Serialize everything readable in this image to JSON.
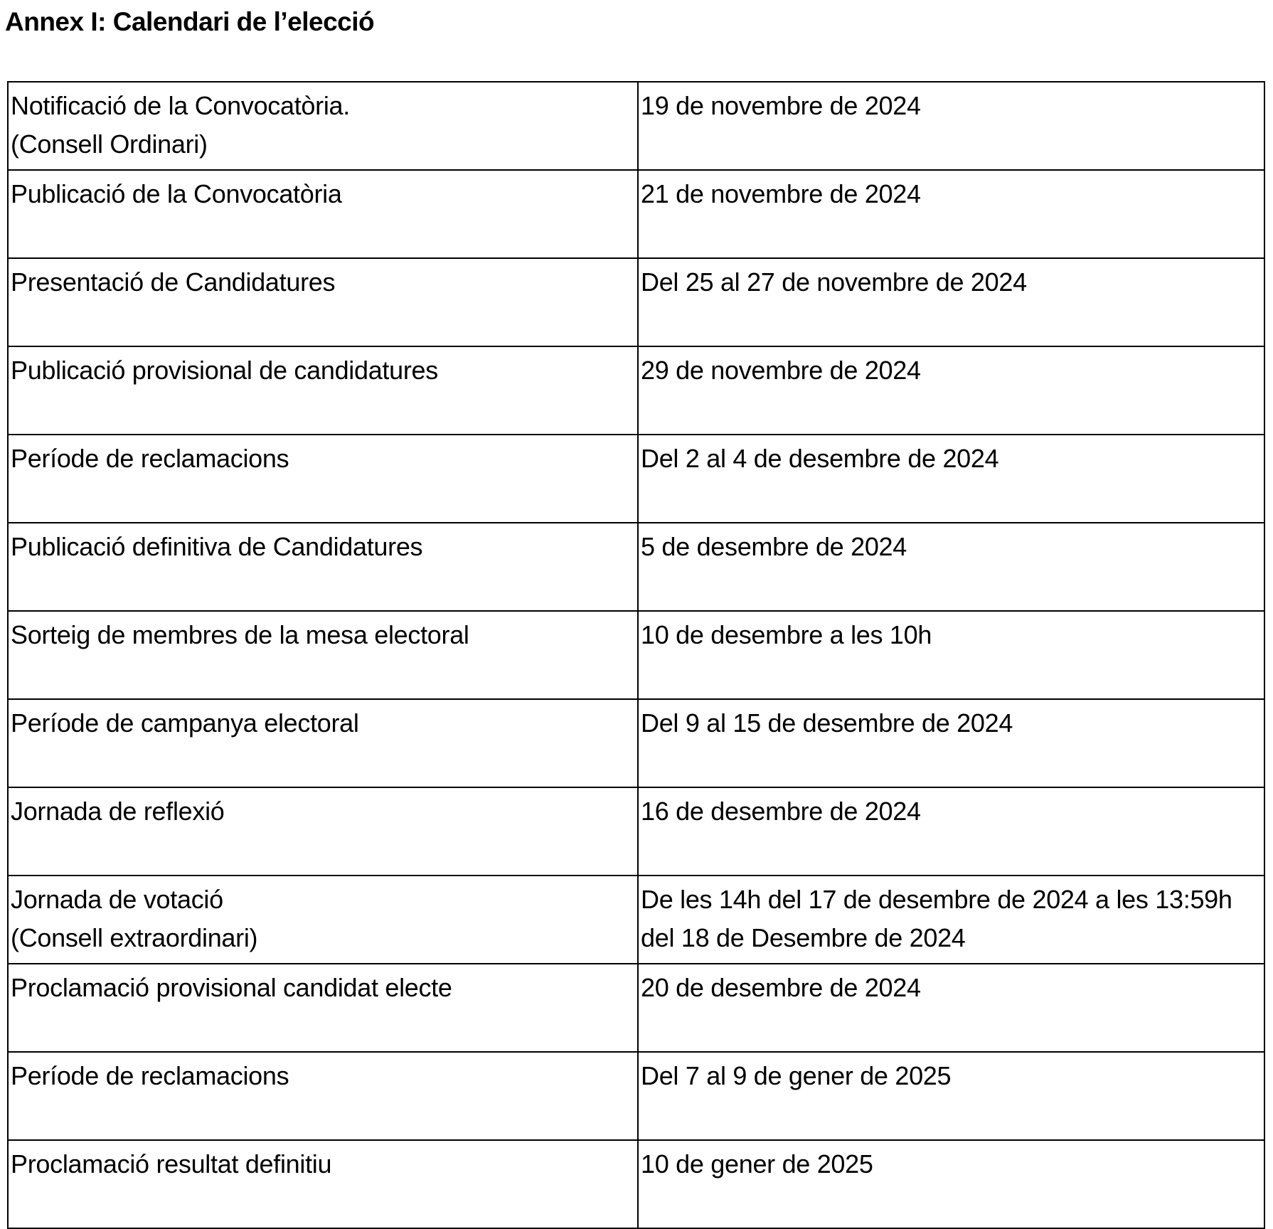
{
  "title": "Annex I: Calendari de l’elecció",
  "rows": [
    {
      "event": "Notificació de la Convocatòria.\n(Consell Ordinari)",
      "date": "19 de novembre de 2024"
    },
    {
      "event": "Publicació de la Convocatòria",
      "date": "21 de novembre de 2024"
    },
    {
      "event": "Presentació de Candidatures",
      "date": "Del 25 al 27 de novembre de 2024"
    },
    {
      "event": "Publicació provisional de candidatures",
      "date": "29 de novembre de 2024"
    },
    {
      "event": "Període de reclamacions",
      "date": "Del 2 al 4 de desembre de 2024"
    },
    {
      "event": "Publicació definitiva de Candidatures",
      "date": "5 de desembre de 2024"
    },
    {
      "event": "Sorteig de membres de la mesa electoral",
      "date": "10 de desembre a les 10h"
    },
    {
      "event": "Període de campanya electoral",
      "date": "Del 9 al 15 de desembre de 2024"
    },
    {
      "event": "Jornada de reflexió",
      "date": "16 de desembre de 2024"
    },
    {
      "event": "Jornada de votació\n(Consell extraordinari)",
      "date": "De les 14h del 17 de desembre de 2024 a les 13:59h del 18 de Desembre de 2024"
    },
    {
      "event": "Proclamació provisional candidat electe",
      "date": "20 de desembre de 2024"
    },
    {
      "event": "Període de reclamacions",
      "date": "Del 7 al 9 de gener de 2025"
    },
    {
      "event": "Proclamació resultat definitiu",
      "date": "10 de gener de 2025"
    }
  ]
}
